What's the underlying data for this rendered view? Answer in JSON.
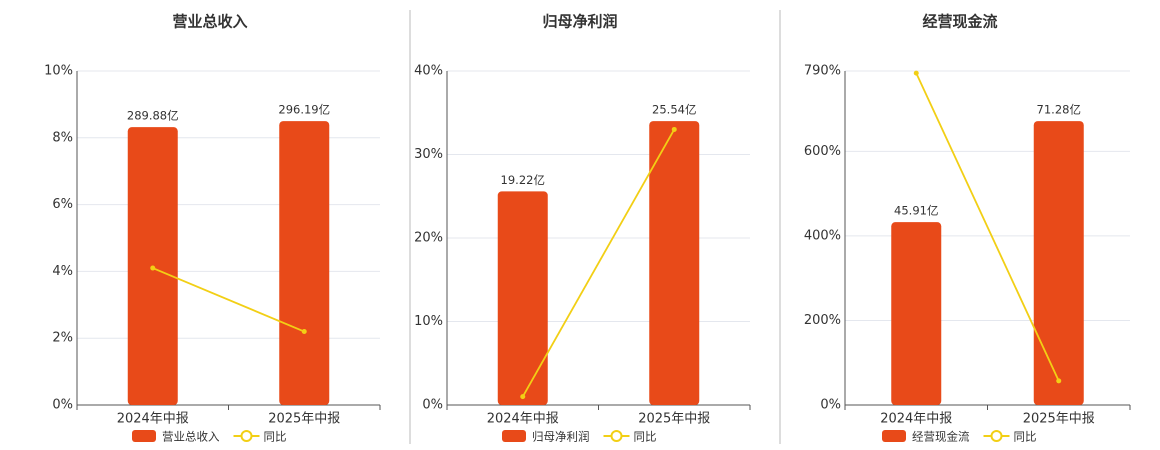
{
  "chart_data": [
    {
      "type": "bar",
      "title": "营业总收入",
      "categories": [
        "2024年中报",
        "2025年中报"
      ],
      "series": [
        {
          "name": "营业总收入",
          "type": "bar",
          "color": "#e84a19",
          "values": [
            289.88,
            296.19
          ],
          "value_labels": [
            "289.88亿",
            "296.19亿"
          ]
        },
        {
          "name": "同比",
          "type": "line",
          "color": "#f2cf15",
          "values": [
            4.1,
            2.2
          ]
        }
      ],
      "ylim": [
        0,
        10
      ],
      "yticks": [
        {
          "value": 0,
          "label": "0%"
        },
        {
          "value": 2,
          "label": "2%"
        },
        {
          "value": 4,
          "label": "4%"
        },
        {
          "value": 6,
          "label": "6%"
        },
        {
          "value": 8,
          "label": "8%"
        },
        {
          "value": 10,
          "label": "10%"
        }
      ],
      "grid": true
    },
    {
      "type": "bar",
      "title": "归母净利润",
      "categories": [
        "2024年中报",
        "2025年中报"
      ],
      "series": [
        {
          "name": "归母净利润",
          "type": "bar",
          "color": "#e84a19",
          "values": [
            19.22,
            25.54
          ],
          "value_labels": [
            "19.22亿",
            "25.54亿"
          ]
        },
        {
          "name": "同比",
          "type": "line",
          "color": "#f2cf15",
          "values": [
            1,
            33
          ]
        }
      ],
      "ylim": [
        0,
        40
      ],
      "yticks": [
        {
          "value": 0,
          "label": "0%"
        },
        {
          "value": 10,
          "label": "10%"
        },
        {
          "value": 20,
          "label": "20%"
        },
        {
          "value": 30,
          "label": "30%"
        },
        {
          "value": 40,
          "label": "40%"
        }
      ],
      "grid": true
    },
    {
      "type": "bar",
      "title": "经营现金流",
      "categories": [
        "2024年中报",
        "2025年中报"
      ],
      "series": [
        {
          "name": "经营现金流",
          "type": "bar",
          "color": "#e84a19",
          "values": [
            45.91,
            71.28
          ],
          "value_labels": [
            "45.91亿",
            "71.28亿"
          ]
        },
        {
          "name": "同比",
          "type": "line",
          "color": "#f2cf15",
          "values": [
            785,
            57
          ]
        }
      ],
      "ylim": [
        0,
        790
      ],
      "yticks": [
        {
          "value": 0,
          "label": "0%"
        },
        {
          "value": 200,
          "label": "200%"
        },
        {
          "value": 400,
          "label": "400%"
        },
        {
          "value": 600,
          "label": "600%"
        },
        {
          "value": 790,
          "label": "790%"
        }
      ],
      "grid": true
    }
  ]
}
